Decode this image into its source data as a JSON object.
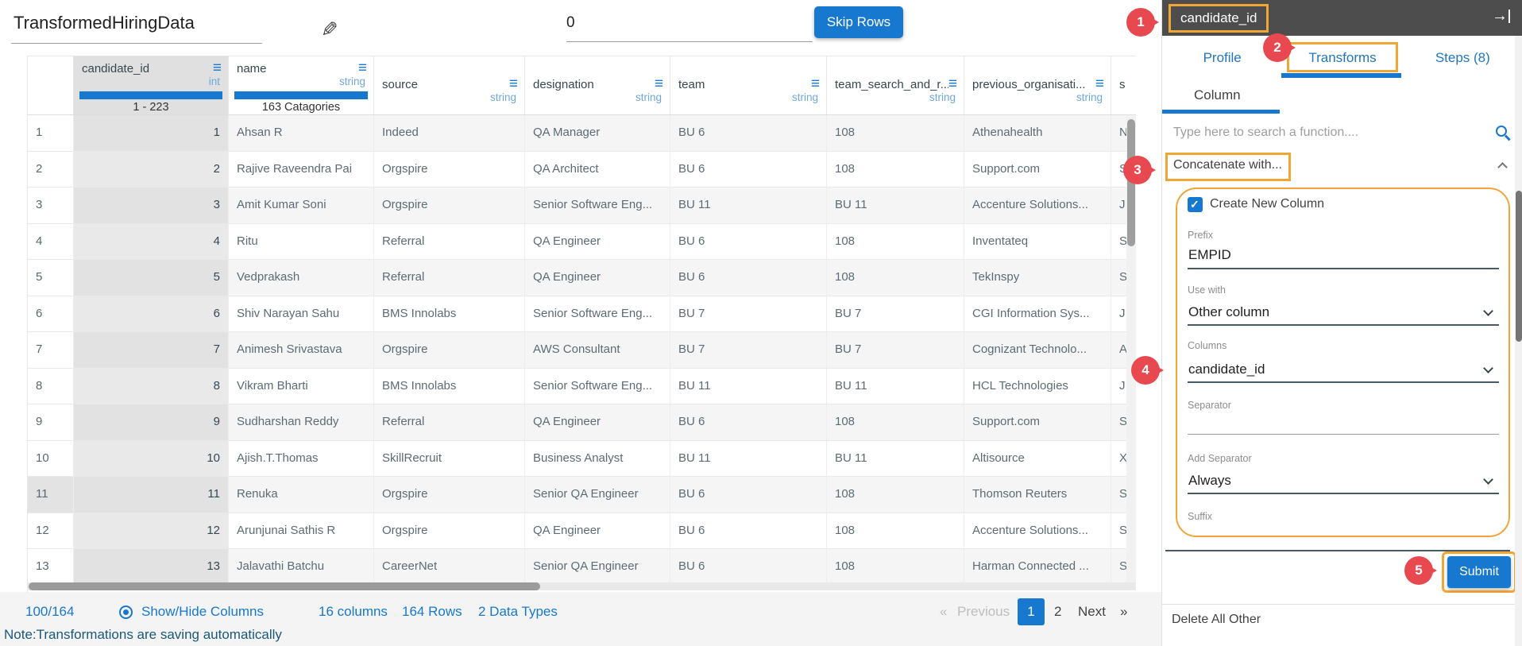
{
  "header": {
    "title": "TransformedHiringData",
    "skip_rows_value": "0",
    "skip_rows_button": "Skip Rows"
  },
  "table": {
    "columns": [
      {
        "name": "candidate_id",
        "type": "int",
        "stats": "1 - 223",
        "has_bar": true,
        "selected": true
      },
      {
        "name": "name",
        "type": "string",
        "stats": "163 Catagories",
        "has_bar": true,
        "selected": false
      },
      {
        "name": "source",
        "type": "string"
      },
      {
        "name": "designation",
        "type": "string"
      },
      {
        "name": "team",
        "type": "string"
      },
      {
        "name": "team_search_and_r...",
        "type": "string"
      },
      {
        "name": "previous_organisati...",
        "type": "string"
      },
      {
        "name": "s",
        "type": "",
        "partial": true
      }
    ],
    "rows": [
      {
        "cells": [
          "1",
          "1",
          "Ahsan R",
          "Indeed",
          "QA Manager",
          "BU 6",
          "108",
          "Athenahealth",
          "N"
        ]
      },
      {
        "cells": [
          "2",
          "2",
          "Rajive Raveendra Pai",
          "Orgspire",
          "QA Architect",
          "BU 6",
          "108",
          "Support.com",
          "S"
        ]
      },
      {
        "cells": [
          "3",
          "3",
          "Amit Kumar Soni",
          "Orgspire",
          "Senior Software Eng...",
          "BU 11",
          "BU 11",
          "Accenture Solutions...",
          "J"
        ]
      },
      {
        "cells": [
          "4",
          "4",
          "Ritu",
          "Referral",
          "QA Engineer",
          "BU 6",
          "108",
          "Inventateq",
          "S"
        ]
      },
      {
        "cells": [
          "5",
          "5",
          "Vedprakash",
          "Referral",
          "QA Engineer",
          "BU 6",
          "108",
          "TekInspy",
          "S"
        ]
      },
      {
        "cells": [
          "6",
          "6",
          "Shiv Narayan Sahu",
          "BMS Innolabs",
          "Senior Software Eng...",
          "BU 7",
          "BU 7",
          "CGI Information Sys...",
          "J"
        ]
      },
      {
        "cells": [
          "7",
          "7",
          "Animesh Srivastava",
          "Orgspire",
          "AWS Consultant",
          "BU 7",
          "BU 7",
          "Cognizant Technolo...",
          "A"
        ]
      },
      {
        "cells": [
          "8",
          "8",
          "Vikram Bharti",
          "BMS Innolabs",
          "Senior Software Eng...",
          "BU 11",
          "BU 11",
          "HCL Technologies",
          "J"
        ]
      },
      {
        "cells": [
          "9",
          "9",
          "Sudharshan Reddy",
          "Referral",
          "QA Engineer",
          "BU 6",
          "108",
          "Support.com",
          "S"
        ]
      },
      {
        "cells": [
          "10",
          "10",
          "Ajish.T.Thomas",
          "SkillRecruit",
          "Business Analyst",
          "BU 11",
          "BU 11",
          "Altisource",
          "X"
        ]
      },
      {
        "cells": [
          "11",
          "11",
          "Renuka",
          "Orgspire",
          "Senior QA Engineer",
          "BU 6",
          "108",
          "Thomson Reuters",
          "S"
        ],
        "highlighted": true
      },
      {
        "cells": [
          "12",
          "12",
          "Arunjunai Sathis R",
          "Orgspire",
          "QA Engineer",
          "BU 6",
          "108",
          "Accenture Solutions...",
          "S"
        ]
      },
      {
        "cells": [
          "13",
          "13",
          "Jalavathi Batchu",
          "CareerNet",
          "Senior QA Engineer",
          "BU 6",
          "108",
          "Harman Connected ...",
          "S"
        ]
      }
    ]
  },
  "footer": {
    "progress": "100/164",
    "show_hide_columns": "Show/Hide Columns",
    "columns_count": "16 columns",
    "rows_count": "164 Rows",
    "data_types": "2 Data Types",
    "pagination": {
      "prev_symbol": "«",
      "previous": "Previous",
      "page_current": "1",
      "page_next": "2",
      "next": "Next",
      "next_symbol": "»"
    },
    "note": "Note:Transformations are saving automatically"
  },
  "panel": {
    "column_name": "candidate_id",
    "tabs": [
      {
        "label": "Profile",
        "active": false
      },
      {
        "label": "Transforms",
        "active": true
      },
      {
        "label": "Steps (8)",
        "active": false
      }
    ],
    "subtab": "Column",
    "search_placeholder": "Type here to search a function....",
    "function_item": "Concatenate with...",
    "form": {
      "create_new_column_label": "Create New Column",
      "create_new_column_checked": true,
      "prefix_label": "Prefix",
      "prefix_value": "EMPID",
      "use_with_label": "Use with",
      "use_with_value": "Other column",
      "columns_label": "Columns",
      "columns_value": "candidate_id",
      "separator_label": "Separator",
      "separator_value": "",
      "add_separator_label": "Add Separator",
      "add_separator_value": "Always",
      "suffix_label": "Suffix",
      "suffix_value": ""
    },
    "submit_label": "Submit",
    "delete_all_other_label": "Delete All Other"
  },
  "annotations": {
    "badges": [
      "1",
      "2",
      "3",
      "4",
      "5"
    ]
  },
  "colors": {
    "accent_blue": "#1778cf",
    "type_blue": "#6fa8d8",
    "annotation_orange": "#f0a537",
    "annotation_red": "#e8484f",
    "panel_header_gray": "#4d4d4d",
    "note_blue": "#1b5878",
    "selected_column_gray": "#e0e0e0"
  }
}
